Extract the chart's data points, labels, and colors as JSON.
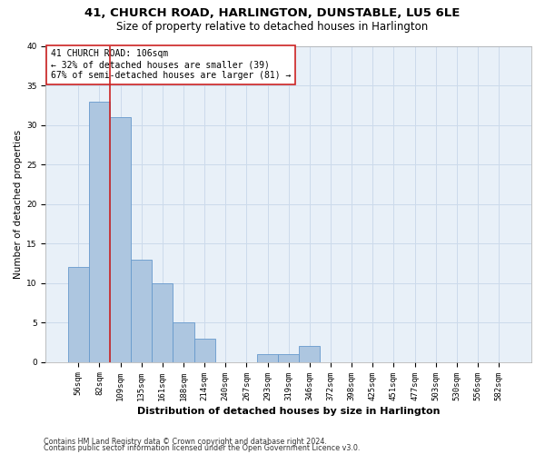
{
  "title1": "41, CHURCH ROAD, HARLINGTON, DUNSTABLE, LU5 6LE",
  "title2": "Size of property relative to detached houses in Harlington",
  "xlabel": "Distribution of detached houses by size in Harlington",
  "ylabel": "Number of detached properties",
  "bar_values": [
    12,
    33,
    31,
    13,
    10,
    5,
    3,
    0,
    0,
    1,
    1,
    2,
    0,
    0,
    0,
    0,
    0,
    0,
    0,
    0,
    0
  ],
  "bin_labels": [
    "56sqm",
    "82sqm",
    "109sqm",
    "135sqm",
    "161sqm",
    "188sqm",
    "214sqm",
    "240sqm",
    "267sqm",
    "293sqm",
    "319sqm",
    "346sqm",
    "372sqm",
    "398sqm",
    "425sqm",
    "451sqm",
    "477sqm",
    "503sqm",
    "530sqm",
    "556sqm",
    "582sqm"
  ],
  "bar_color": "#adc6e0",
  "bar_edge_color": "#6699cc",
  "grid_color": "#ccdaeb",
  "background_color": "#e8f0f8",
  "vline_color": "#cc2222",
  "annotation_text": "41 CHURCH ROAD: 106sqm\n← 32% of detached houses are smaller (39)\n67% of semi-detached houses are larger (81) →",
  "annotation_box_color": "#ffffff",
  "annotation_box_edge": "#cc2222",
  "footer1": "Contains HM Land Registry data © Crown copyright and database right 2024.",
  "footer2": "Contains public sector information licensed under the Open Government Licence v3.0.",
  "ylim": [
    0,
    40
  ],
  "yticks": [
    0,
    5,
    10,
    15,
    20,
    25,
    30,
    35,
    40
  ],
  "title1_fontsize": 9.5,
  "title2_fontsize": 8.5,
  "ylabel_fontsize": 7.5,
  "xlabel_fontsize": 8,
  "tick_fontsize": 6.5,
  "annotation_fontsize": 7,
  "footer_fontsize": 5.8
}
